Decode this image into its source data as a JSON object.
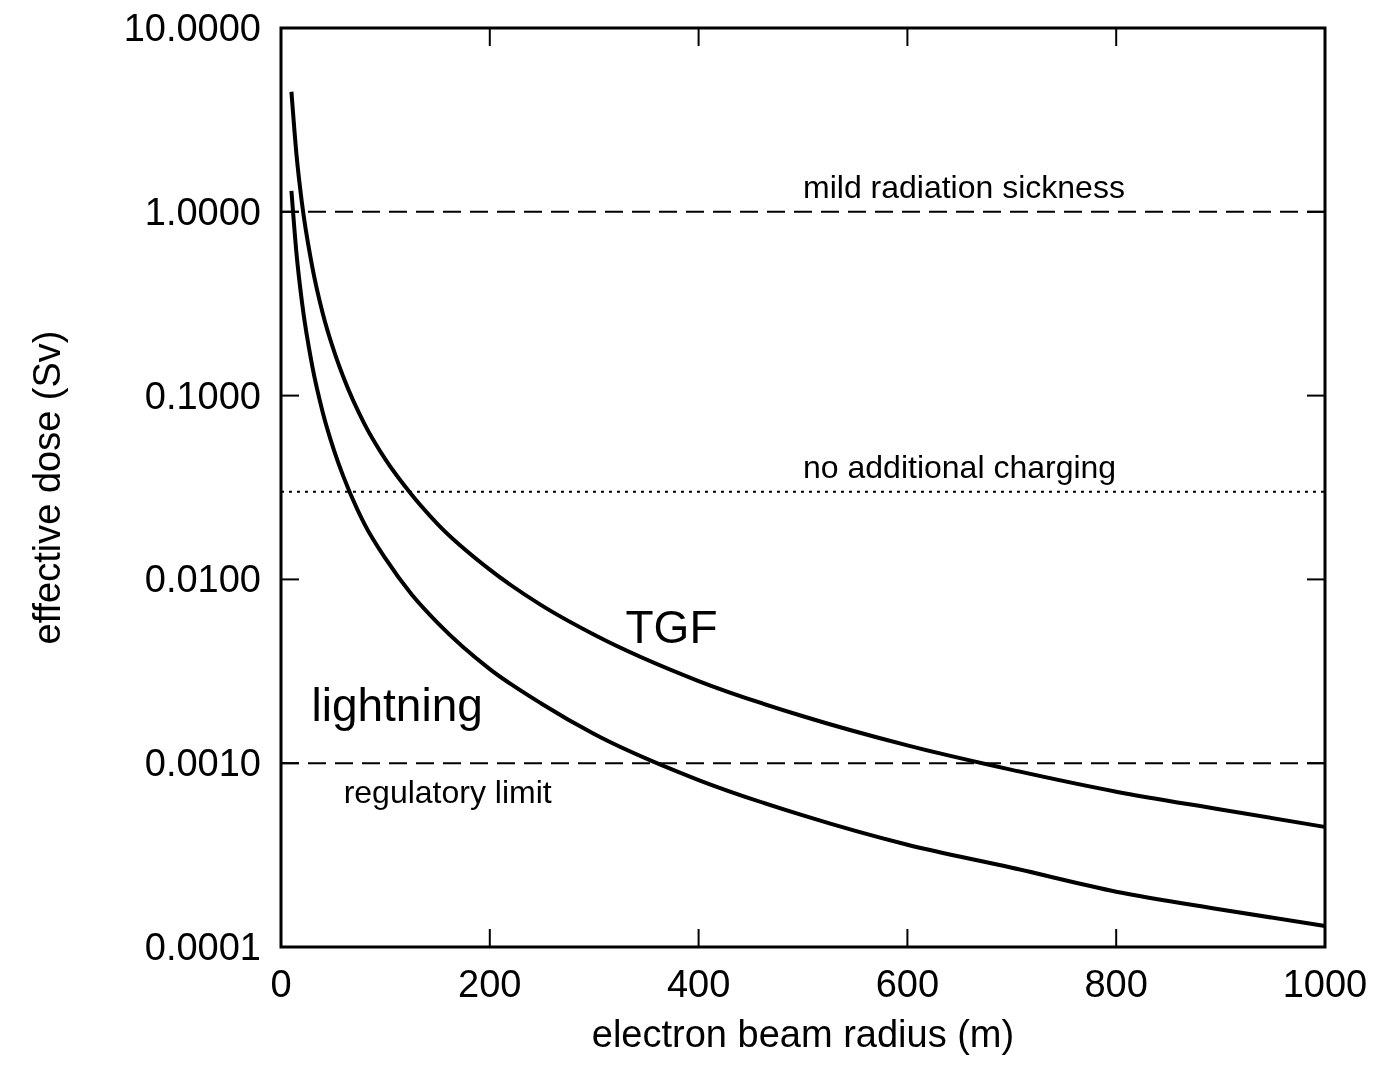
{
  "chart_data": {
    "type": "line",
    "xlabel": "electron beam radius (m)",
    "ylabel": "effective dose (Sv)",
    "log": "y",
    "xlim": [
      0,
      1000
    ],
    "xticks": [
      0,
      200,
      400,
      600,
      800,
      1000
    ],
    "ylim": [
      0.0001,
      10
    ],
    "yticks": [
      {
        "value": 0.0001,
        "label": "0.0001"
      },
      {
        "value": 0.001,
        "label": "0.0010"
      },
      {
        "value": 0.01,
        "label": "0.0100"
      },
      {
        "value": 0.1,
        "label": "0.1000"
      },
      {
        "value": 1,
        "label": "1.0000"
      },
      {
        "value": 10,
        "label": "10.0000"
      }
    ],
    "grid": false,
    "line_style": "solid",
    "x": [
      10,
      15,
      20,
      30,
      40,
      50,
      60,
      80,
      100,
      125,
      150,
      200,
      250,
      300,
      400,
      500,
      600,
      700,
      800,
      900,
      1000
    ],
    "series": [
      {
        "name": "TGF",
        "color": "#000000",
        "values": [
          4.5,
          2.0,
          1.125,
          0.5,
          0.28,
          0.18,
          0.125,
          0.07,
          0.045,
          0.029,
          0.02,
          0.0113,
          0.0072,
          0.005,
          0.0028,
          0.0018,
          0.00125,
          0.00092,
          0.0007,
          0.00056,
          0.00045
        ]
      },
      {
        "name": "lightning",
        "color": "#000000",
        "values": [
          1.3,
          0.58,
          0.325,
          0.144,
          0.081,
          0.052,
          0.036,
          0.02,
          0.013,
          0.0083,
          0.0058,
          0.00325,
          0.0021,
          0.00144,
          0.00081,
          0.00052,
          0.00036,
          0.00027,
          0.0002,
          0.00016,
          0.00013
        ]
      }
    ],
    "ref_lines": [
      {
        "axis": "y",
        "value": 1,
        "label": "mild radiation sickness",
        "line_style": "dashed",
        "color": "#000000"
      },
      {
        "axis": "y",
        "value": 0.03,
        "label": "no additional charging",
        "line_style": "dotted",
        "color": "#000000"
      },
      {
        "axis": "y",
        "value": 0.001,
        "label": "regulatory limit",
        "line_style": "dashed",
        "color": "#000000"
      }
    ]
  }
}
